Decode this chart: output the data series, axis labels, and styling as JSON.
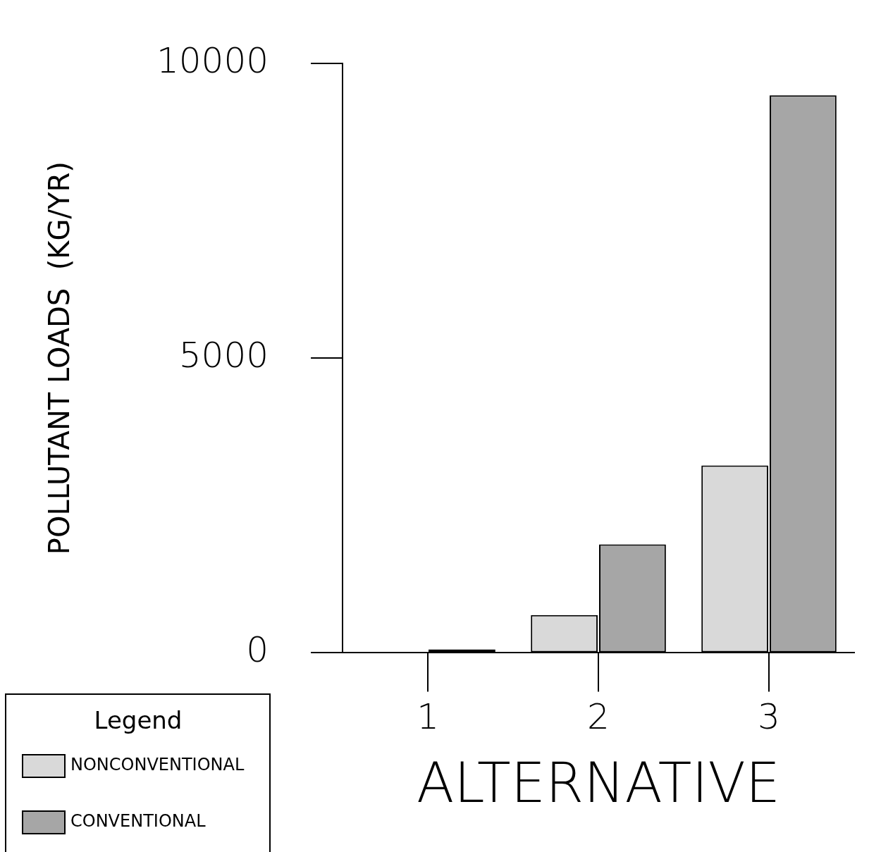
{
  "chart_data": {
    "type": "bar",
    "xlabel": "ALTERNATIVE",
    "ylabel": "POLLUTANT LOADS  (KG/YR)",
    "legend_title": "Legend",
    "categories": [
      "1",
      "2",
      "3"
    ],
    "series": [
      {
        "name": "NONCONVENTIONAL",
        "color": "#d9d9d9",
        "values": [
          0,
          640,
          3180
        ]
      },
      {
        "name": "CONVENTIONAL",
        "color": "#a6a6a6",
        "values": [
          60,
          1840,
          9460
        ]
      }
    ],
    "ylim": [
      0,
      10000
    ],
    "yticks": [
      0,
      5000,
      10000
    ],
    "grid": false,
    "legend": "bottom left"
  }
}
